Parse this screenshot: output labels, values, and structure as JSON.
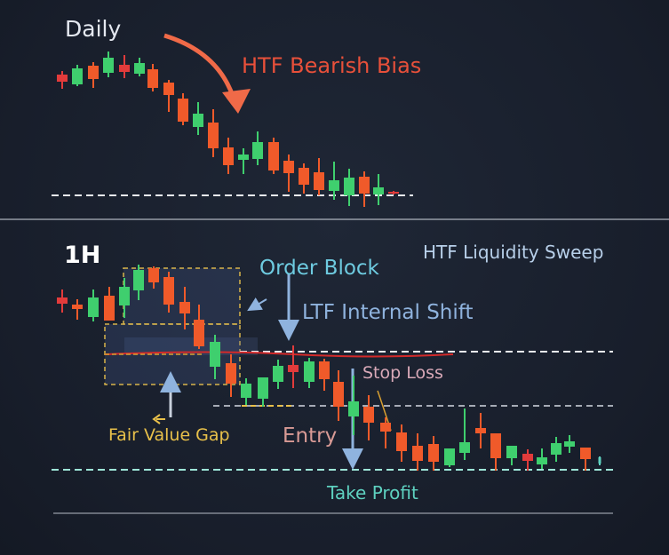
{
  "panels": {
    "daily": {
      "title": "Daily",
      "annotation": "HTF Bearish Bias"
    },
    "hourly": {
      "title": "1H",
      "annotations": {
        "liquidity_sweep": "HTF Liquidity Sweep",
        "order_block": "Order Block",
        "internal_shift": "LTF Internal Shift",
        "stop_loss": "Stop Loss",
        "fair_value_gap": "Fair Value Gap",
        "entry": "Entry",
        "take_profit": "Take Profit"
      }
    }
  },
  "colors": {
    "bullish": "#3fcf6e",
    "bearish": "#f05a2a",
    "bearish_red": "#e23b3b",
    "bias": "#e8503a",
    "order_block": "#6ecbe0",
    "internal_shift": "#8fb3de",
    "stop_loss": "#d9a9b8",
    "fair_value_gap": "#e8c04a",
    "entry": "#d89a95",
    "take_profit": "#5ed1c0",
    "liquidity_sweep": "#b8d0ea"
  }
}
